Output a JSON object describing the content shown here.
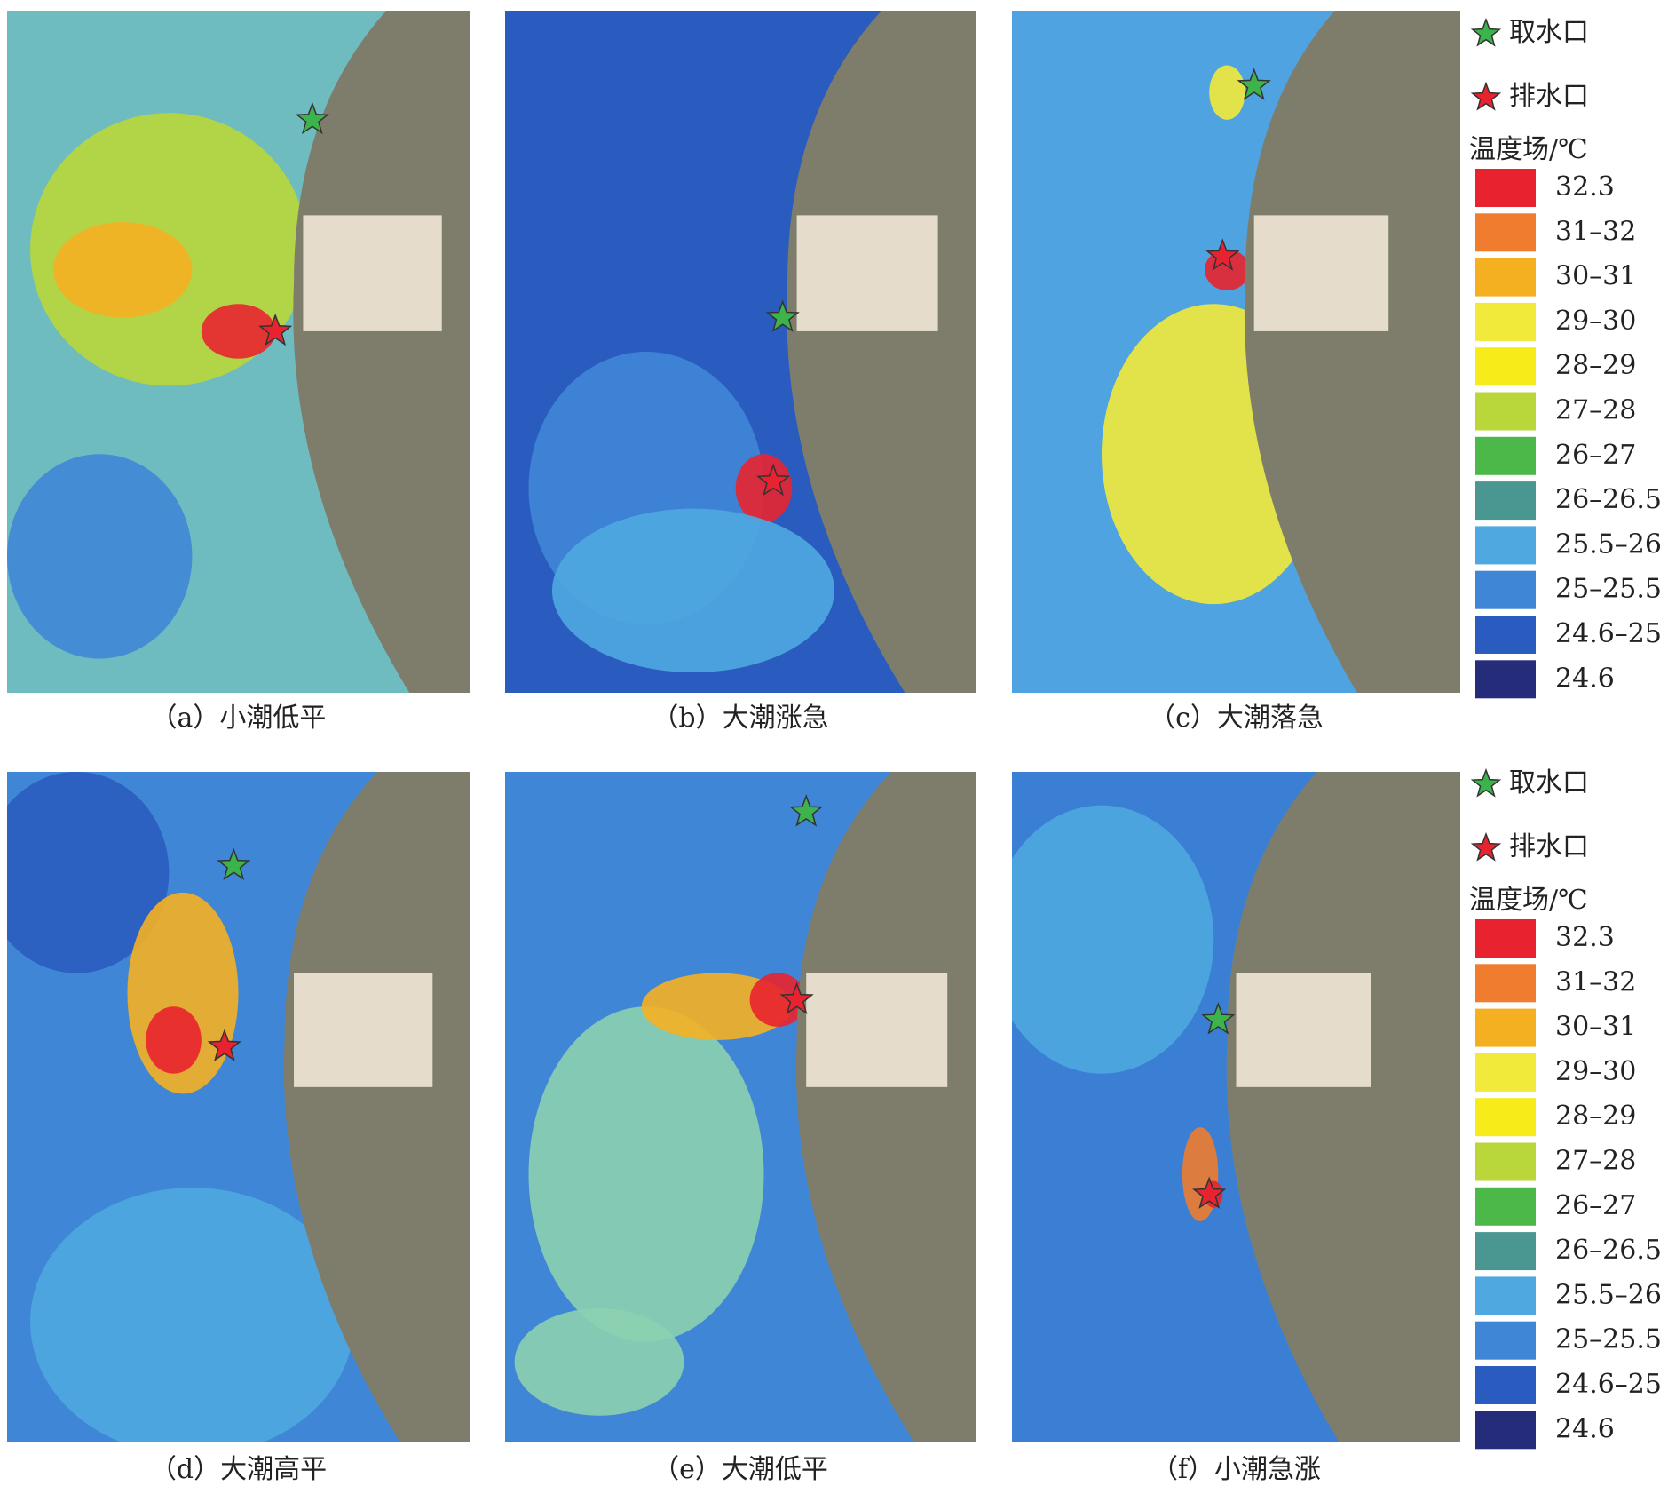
{
  "panels": [
    {
      "caption": "（a）小潮低平"
    },
    {
      "caption": "（b）大潮涨急"
    },
    {
      "caption": "（c）大潮落急"
    },
    {
      "caption": "（d）大潮高平"
    },
    {
      "caption": "（e）大潮低平"
    },
    {
      "caption": "（f）小潮急涨"
    }
  ],
  "legend": {
    "intake": "取水口",
    "outfall": "排水口",
    "title": "温度场/℃",
    "classes": [
      {
        "label": "32.3",
        "color": "#e8232f"
      },
      {
        "label": "31–32",
        "color": "#f07c2f"
      },
      {
        "label": "30–31",
        "color": "#f5b022"
      },
      {
        "label": "29–30",
        "color": "#f2ea3a"
      },
      {
        "label": "28–29",
        "color": "#f7ec19"
      },
      {
        "label": "27–28",
        "color": "#b9d63a"
      },
      {
        "label": "26–27",
        "color": "#4db84a"
      },
      {
        "label": "26–26.5",
        "color": "#4a9690"
      },
      {
        "label": "25.5–26",
        "color": "#4fa9e0"
      },
      {
        "label": "25–25.5",
        "color": "#3f86d6"
      },
      {
        "label": "24.6–25",
        "color": "#2a5cbf"
      },
      {
        "label": "24.6",
        "color": "#252c7a"
      }
    ]
  }
}
